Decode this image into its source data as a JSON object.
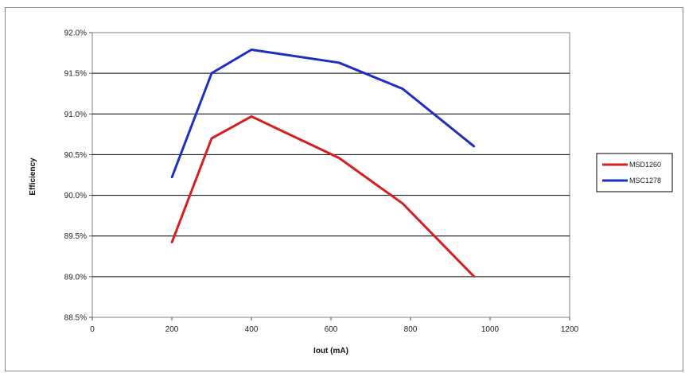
{
  "chart_data": {
    "type": "line",
    "title": "",
    "xlabel": "Iout (mA)",
    "ylabel": "Efficiency",
    "xlim": [
      0,
      1200
    ],
    "ylim": [
      88.5,
      92.0
    ],
    "x_ticks": [
      "0",
      "200",
      "400",
      "600",
      "800",
      "1000",
      "1200"
    ],
    "y_ticks": [
      "88.5%",
      "89.0%",
      "89.5%",
      "90.0%",
      "90.5%",
      "91.0%",
      "91.5%",
      "92.0%"
    ],
    "grid": "horizontal",
    "legend_position": "right",
    "series": [
      {
        "name": "MSD1260",
        "color": "#d42020",
        "points": [
          [
            200,
            89.42
          ],
          [
            300,
            90.7
          ],
          [
            400,
            90.97
          ],
          [
            620,
            90.46
          ],
          [
            780,
            89.9
          ],
          [
            960,
            89.0
          ]
        ]
      },
      {
        "name": "MSC1278",
        "color": "#1f2fc4",
        "points": [
          [
            200,
            90.22
          ],
          [
            300,
            91.5
          ],
          [
            400,
            91.79
          ],
          [
            620,
            91.63
          ],
          [
            780,
            91.31
          ],
          [
            960,
            90.6
          ]
        ]
      }
    ]
  }
}
